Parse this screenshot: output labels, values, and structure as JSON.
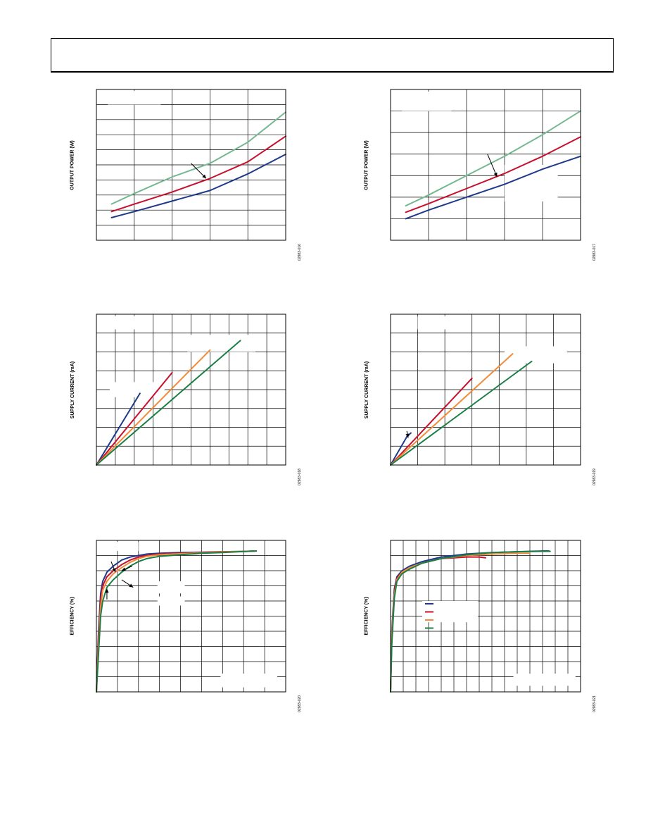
{
  "page": {
    "header": ""
  },
  "chart_data": [
    {
      "id": "p1",
      "type": "line",
      "title": "",
      "ylabel": "OUTPUT POWER (W)",
      "figure_id": "02983-016",
      "xlim": [
        0,
        5
      ],
      "ylim": [
        0,
        10
      ],
      "grid": {
        "x": 5,
        "y": 10
      },
      "legend_boxes": [
        [
          0.3,
          9.0,
          1.7,
          9.9
        ]
      ],
      "series": [
        {
          "color": "#74b891",
          "x": [
            0.4,
            1.0,
            2.0,
            3.0,
            4.0,
            5.0
          ],
          "y": [
            2.4,
            3.1,
            4.2,
            5.1,
            6.5,
            8.5
          ]
        },
        {
          "color": "#c8102e",
          "x": [
            0.4,
            1.0,
            2.0,
            3.0,
            4.0,
            5.0
          ],
          "y": [
            1.9,
            2.4,
            3.2,
            4.1,
            5.2,
            6.9
          ]
        },
        {
          "color": "#1f3a8a",
          "x": [
            0.4,
            1.0,
            2.0,
            3.0,
            4.0,
            5.0
          ],
          "y": [
            1.5,
            1.9,
            2.6,
            3.3,
            4.4,
            5.7
          ]
        }
      ],
      "arrows": [
        [
          2.5,
          5.1,
          2.9,
          4.1
        ]
      ]
    },
    {
      "id": "p2",
      "type": "line",
      "title": "",
      "ylabel": "OUTPUT POWER (W)",
      "figure_id": "02983-017",
      "xlim": [
        0,
        5
      ],
      "ylim": [
        0,
        7
      ],
      "grid": {
        "x": 5,
        "y": 7
      },
      "legend_boxes": [
        [
          0.3,
          6.0,
          1.6,
          6.9
        ],
        [
          3.0,
          1.8,
          4.4,
          3.5
        ]
      ],
      "series": [
        {
          "color": "#74b891",
          "x": [
            0.4,
            1.0,
            2.0,
            3.0,
            4.0,
            5.0
          ],
          "y": [
            1.6,
            2.1,
            3.0,
            3.9,
            4.9,
            6.0
          ]
        },
        {
          "color": "#c8102e",
          "x": [
            0.4,
            1.0,
            2.0,
            3.0,
            4.0,
            5.0
          ],
          "y": [
            1.3,
            1.7,
            2.4,
            3.1,
            3.9,
            4.8
          ]
        },
        {
          "color": "#1f3a8a",
          "x": [
            0.4,
            1.0,
            2.0,
            3.0,
            4.0,
            5.0
          ],
          "y": [
            1.0,
            1.4,
            2.0,
            2.6,
            3.3,
            3.9
          ]
        }
      ],
      "arrows": [
        [
          2.55,
          4.0,
          2.8,
          2.95
        ]
      ]
    },
    {
      "id": "p3",
      "type": "line",
      "title": "",
      "ylabel": "SUPPLY CURRENT (mA)",
      "figure_id": "02983-018",
      "xlim": [
        0,
        10
      ],
      "ylim": [
        0,
        8
      ],
      "grid": {
        "x": 10,
        "y": 8
      },
      "legend_boxes": [
        [
          0.7,
          7.2,
          2.9,
          7.9
        ],
        [
          4.8,
          6.0,
          8.4,
          6.9
        ],
        [
          0.7,
          3.6,
          3.6,
          4.4
        ]
      ],
      "series": [
        {
          "color": "#1f3a8a",
          "x": [
            0,
            2.3
          ],
          "y": [
            0,
            3.8
          ]
        },
        {
          "color": "#c8102e",
          "x": [
            0,
            4.0
          ],
          "y": [
            0,
            4.9
          ]
        },
        {
          "color": "#f28c3a",
          "x": [
            0,
            6.0
          ],
          "y": [
            0,
            6.1
          ]
        },
        {
          "color": "#1b7f45",
          "x": [
            0,
            7.6
          ],
          "y": [
            0,
            6.6
          ]
        }
      ],
      "arrows": []
    },
    {
      "id": "p4",
      "type": "line",
      "title": "",
      "ylabel": "SUPPLY CURRENT (mA)",
      "figure_id": "02983-019",
      "xlim": [
        0,
        7
      ],
      "ylim": [
        0,
        8
      ],
      "grid": {
        "x": 7,
        "y": 8
      },
      "legend_boxes": [
        [
          1.0,
          7.2,
          2.9,
          7.9
        ],
        [
          4.2,
          5.4,
          6.5,
          6.3
        ]
      ],
      "series": [
        {
          "color": "#1f3a8a",
          "x": [
            0,
            0.6,
            0.75
          ],
          "y": [
            0,
            1.5,
            1.7
          ]
        },
        {
          "color": "#c8102e",
          "x": [
            0,
            3.0
          ],
          "y": [
            0,
            4.6
          ]
        },
        {
          "color": "#f28c3a",
          "x": [
            0,
            4.5
          ],
          "y": [
            0,
            5.9
          ]
        },
        {
          "color": "#1b7f45",
          "x": [
            0,
            5.2
          ],
          "y": [
            0,
            5.5
          ]
        }
      ],
      "arrows": [
        [
          0.6,
          1.8,
          0.65,
          1.45
        ]
      ]
    },
    {
      "id": "p5",
      "type": "line",
      "title": "",
      "ylabel": "EFFICIENCY (%)",
      "figure_id": "02983-020",
      "xlim": [
        0,
        9
      ],
      "ylim": [
        0,
        10
      ],
      "grid": {
        "x": 9,
        "y": 10
      },
      "legend_boxes": [
        [
          0.2,
          9.3,
          2.0,
          9.9
        ],
        [
          2.9,
          6.5,
          4.2,
          7.3
        ],
        [
          2.9,
          5.7,
          4.2,
          6.3
        ],
        [
          5.9,
          0.3,
          8.6,
          1.2
        ]
      ],
      "series": [
        {
          "color": "#1f3a8a",
          "x": [
            0,
            0.1,
            0.2,
            0.3,
            0.5,
            0.8,
            1.2,
            1.6,
            2.0,
            2.4,
            3.0,
            4.0,
            5.0,
            6.0,
            7.0,
            7.6
          ],
          "y": [
            0,
            4.0,
            6.5,
            7.3,
            7.9,
            8.3,
            8.7,
            8.9,
            9.0,
            9.1,
            9.15,
            9.2,
            9.22,
            9.25,
            9.27,
            9.3
          ]
        },
        {
          "color": "#c8102e",
          "x": [
            0,
            0.1,
            0.2,
            0.3,
            0.5,
            0.8,
            1.2,
            1.6,
            2.0,
            2.4,
            3.0,
            4.0,
            5.0,
            6.0,
            7.0,
            7.6
          ],
          "y": [
            0,
            3.5,
            6.0,
            7.0,
            7.6,
            8.0,
            8.4,
            8.7,
            8.9,
            9.0,
            9.1,
            9.15,
            9.2,
            9.25,
            9.27,
            9.3
          ]
        },
        {
          "color": "#f28c3a",
          "x": [
            0,
            0.1,
            0.2,
            0.3,
            0.5,
            0.8,
            1.2,
            1.6,
            2.0,
            2.4,
            3.0,
            4.0,
            5.0,
            6.0,
            7.0,
            7.6
          ],
          "y": [
            0,
            3.0,
            5.6,
            6.7,
            7.3,
            7.8,
            8.2,
            8.55,
            8.8,
            8.95,
            9.05,
            9.12,
            9.18,
            9.23,
            9.27,
            9.3
          ]
        },
        {
          "color": "#1b7f45",
          "x": [
            0,
            0.1,
            0.2,
            0.3,
            0.5,
            0.8,
            1.2,
            1.6,
            2.0,
            2.4,
            3.0,
            4.0,
            5.0,
            6.0,
            7.0,
            7.6
          ],
          "y": [
            0,
            2.5,
            5.0,
            6.0,
            6.9,
            7.4,
            7.9,
            8.3,
            8.6,
            8.8,
            8.95,
            9.05,
            9.15,
            9.2,
            9.27,
            9.3
          ]
        }
      ],
      "arrows": [
        [
          0.7,
          8.6,
          0.9,
          7.9
        ],
        [
          1.2,
          7.4,
          1.75,
          6.9
        ],
        [
          1.7,
          8.3,
          1.2,
          8.0
        ],
        [
          0.5,
          6.1,
          0.5,
          6.8
        ]
      ]
    },
    {
      "id": "p6",
      "type": "line",
      "title": "",
      "ylabel": "EFFICIENCY (%)",
      "figure_id": "02983-021",
      "xlim": [
        0,
        15
      ],
      "ylim": [
        0,
        10
      ],
      "grid": {
        "x": 15,
        "y": 10
      },
      "legend_boxes": [
        [
          2.5,
          4.6,
          6.9,
          6.0
        ],
        [
          9.7,
          0.4,
          14.6,
          1.2
        ]
      ],
      "legend_swatches": [
        "#1f3a8a",
        "#c8102e",
        "#f28c3a",
        "#1b7f45"
      ],
      "series": [
        {
          "color": "#1f3a8a",
          "x": [
            0,
            0.1,
            0.3,
            0.5,
            0.9,
            1.5,
            2.5,
            4.0,
            6.0,
            8.0,
            10.0,
            12.0,
            12.5
          ],
          "y": [
            0,
            4.0,
            6.8,
            7.6,
            8.0,
            8.3,
            8.6,
            8.9,
            9.1,
            9.2,
            9.25,
            9.3,
            9.3
          ]
        },
        {
          "color": "#c8102e",
          "x": [
            0,
            0.1,
            0.3,
            0.5,
            0.9,
            1.5,
            2.5,
            4.0,
            6.0,
            7.0,
            7.5
          ],
          "y": [
            0,
            3.8,
            6.6,
            7.5,
            7.9,
            8.2,
            8.5,
            8.8,
            8.9,
            8.9,
            8.85
          ]
        },
        {
          "color": "#f28c3a",
          "x": [
            0,
            0.1,
            0.3,
            0.5,
            0.9,
            1.5,
            2.5,
            4.0,
            6.0,
            8.0,
            10.0,
            11.0
          ],
          "y": [
            0,
            3.6,
            6.4,
            7.4,
            7.9,
            8.2,
            8.5,
            8.8,
            9.0,
            9.1,
            9.15,
            9.15
          ]
        },
        {
          "color": "#1b7f45",
          "x": [
            0,
            0.1,
            0.3,
            0.5,
            0.9,
            1.5,
            2.5,
            4.0,
            6.0,
            8.0,
            10.0,
            12.0,
            12.6
          ],
          "y": [
            0,
            3.2,
            6.2,
            7.3,
            7.8,
            8.1,
            8.5,
            8.8,
            9.05,
            9.2,
            9.25,
            9.28,
            9.28
          ]
        }
      ],
      "arrows": []
    }
  ]
}
